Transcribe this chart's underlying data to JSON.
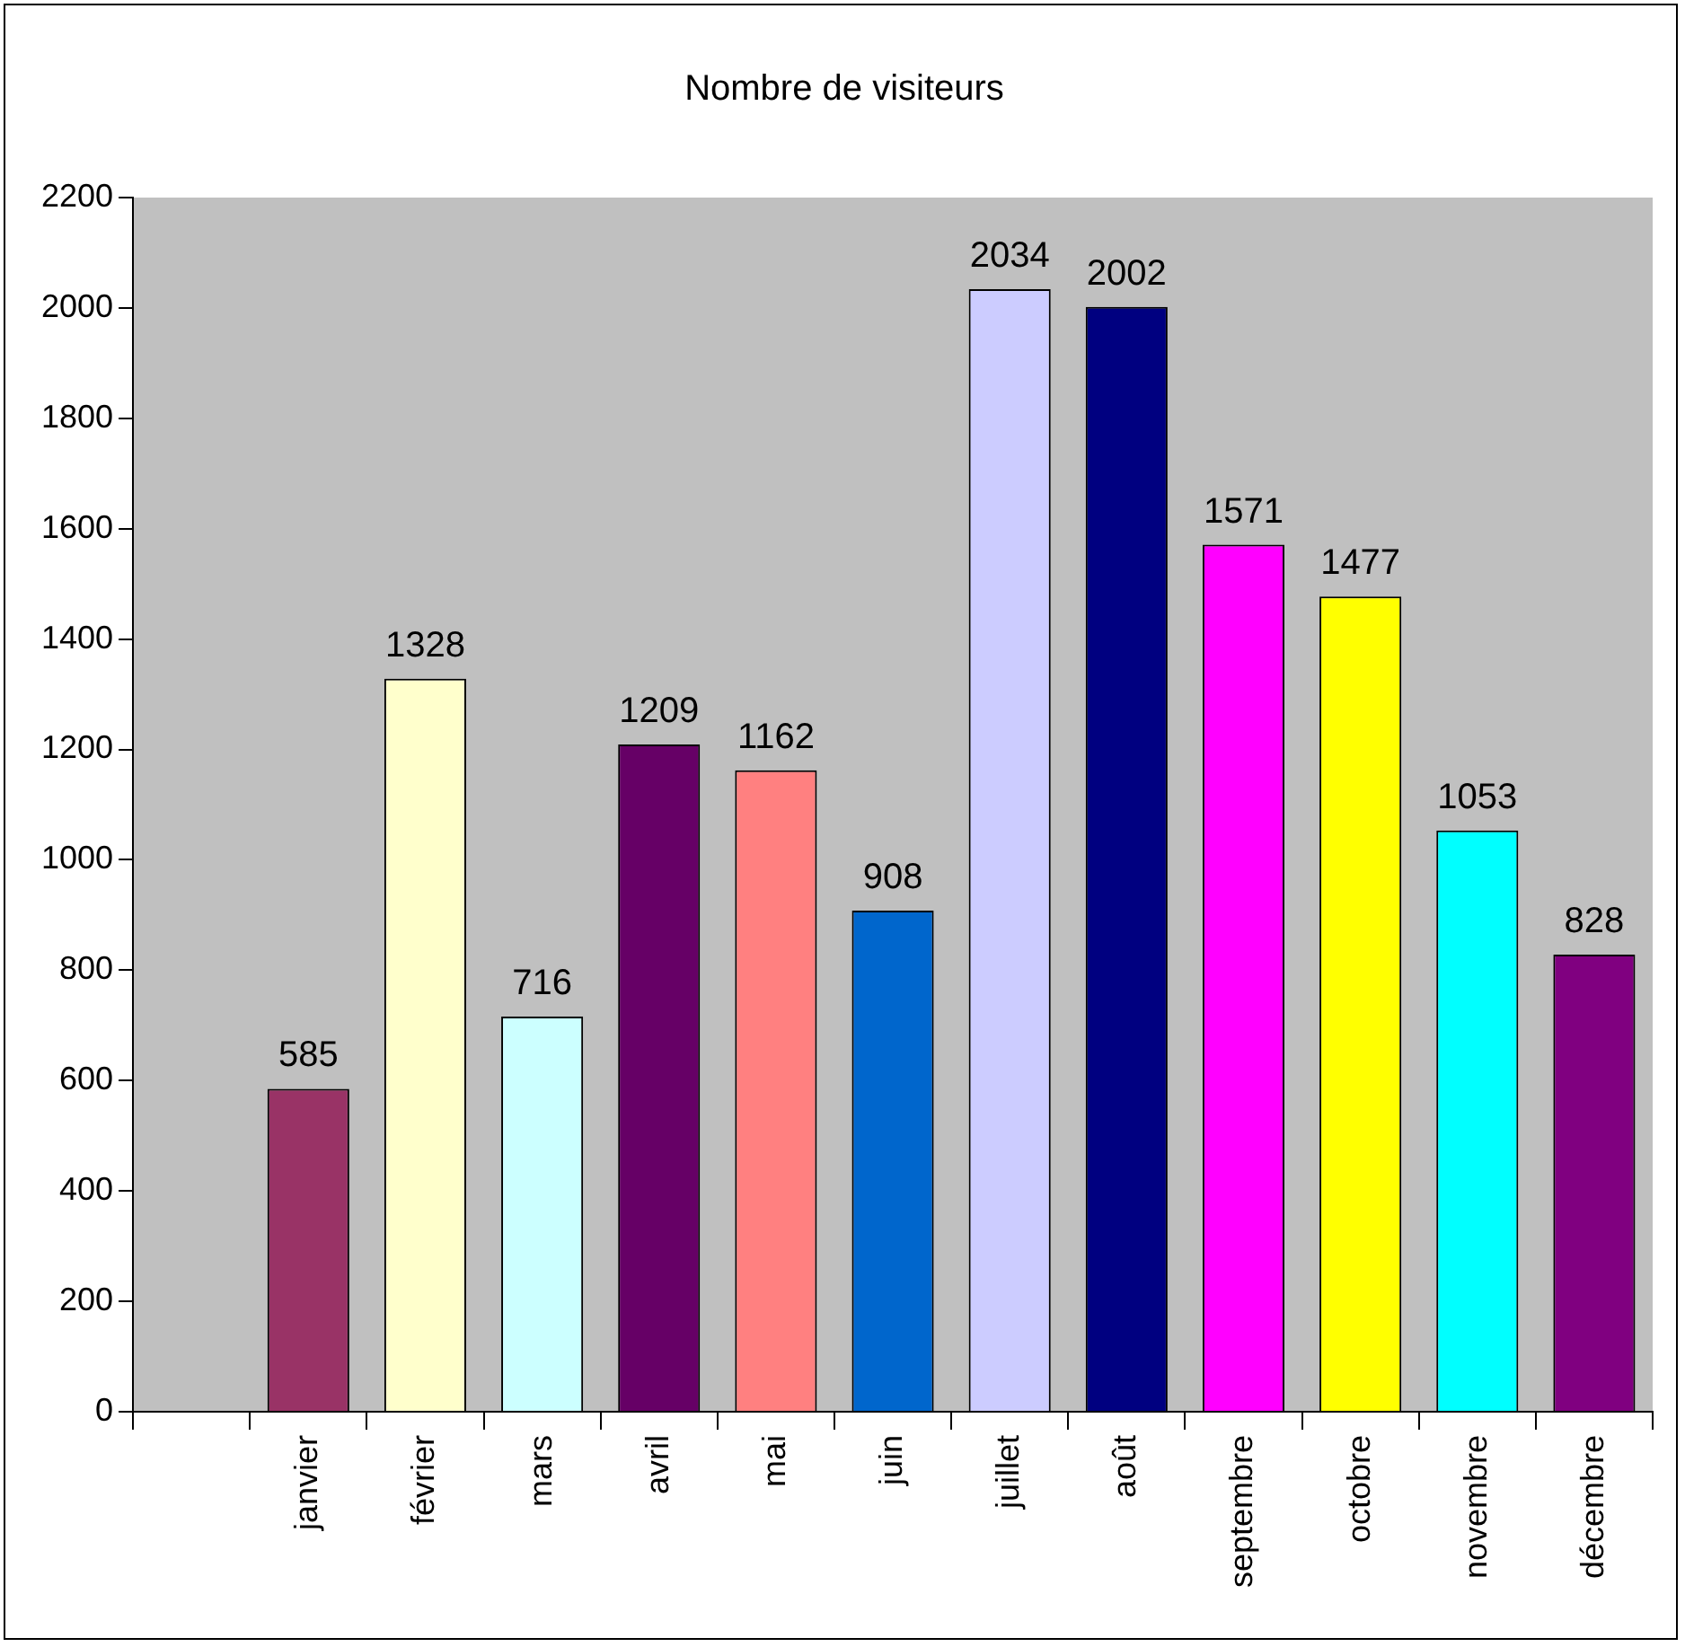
{
  "chart_data": {
    "type": "bar",
    "title": "Nombre de visiteurs",
    "categories": [
      null,
      "janvier",
      "février",
      "mars",
      "avril",
      "mai",
      "juin",
      "juillet",
      "août",
      "septembre",
      "octobre",
      "novembre",
      "décembre"
    ],
    "values": [
      null,
      585,
      1328,
      716,
      1209,
      1162,
      908,
      2034,
      2002,
      1571,
      1477,
      1053,
      828
    ],
    "colors": [
      "#ffffff",
      "#993366",
      "#ffffcc",
      "#ccffff",
      "#660066",
      "#ff8080",
      "#0066cc",
      "#ccccff",
      "#000080",
      "#ff00ff",
      "#ffff00",
      "#00ffff",
      "#800080"
    ],
    "ylim": [
      0,
      2200
    ],
    "yticks": [
      0,
      200,
      400,
      600,
      800,
      1000,
      1200,
      1400,
      1600,
      1800,
      2000,
      2200
    ],
    "data_labels": true,
    "grid": false,
    "legend": false
  }
}
